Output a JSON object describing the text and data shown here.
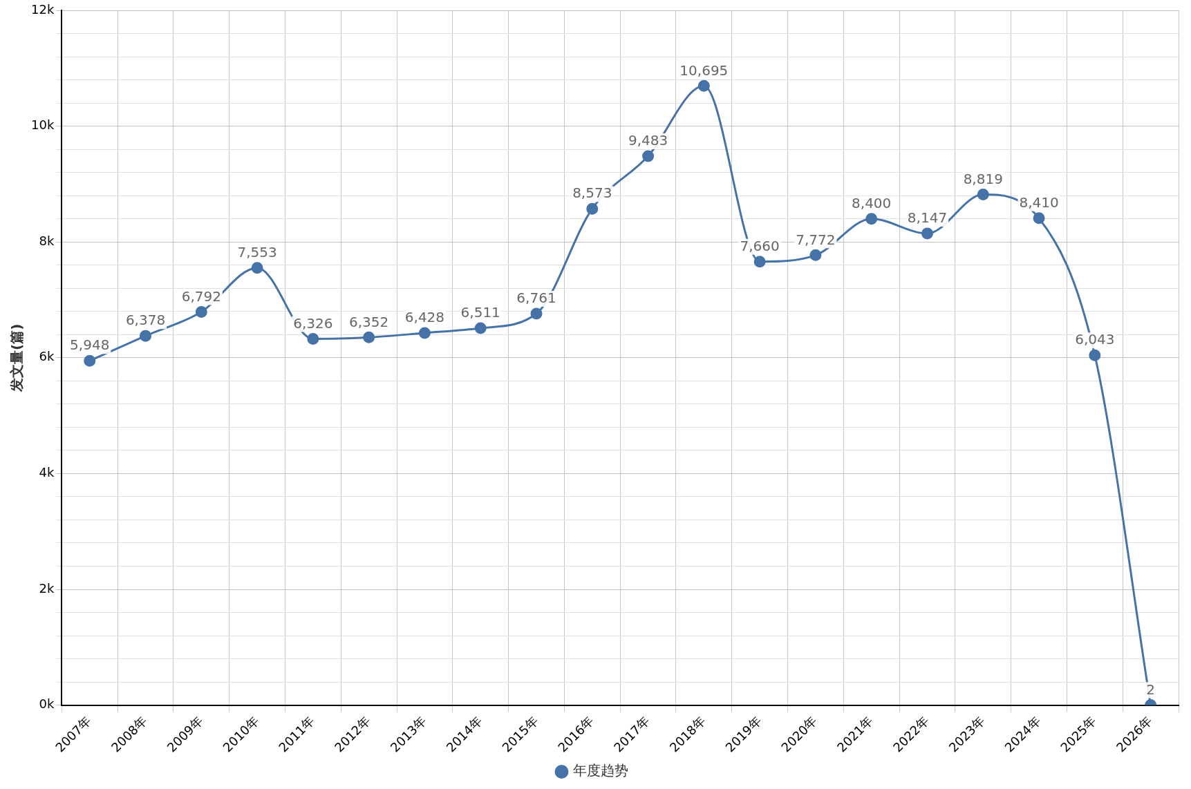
{
  "chart_data": {
    "type": "line",
    "ylabel": "发文量(篇)",
    "categories": [
      "2007年",
      "2008年",
      "2009年",
      "2010年",
      "2011年",
      "2012年",
      "2013年",
      "2014年",
      "2015年",
      "2016年",
      "2017年",
      "2018年",
      "2019年",
      "2020年",
      "2021年",
      "2022年",
      "2023年",
      "2024年",
      "2025年",
      "2026年"
    ],
    "series": [
      {
        "name": "年度趋势",
        "color": "#4572a7",
        "values": [
          5948,
          6378,
          6792,
          7553,
          6326,
          6352,
          6428,
          6511,
          6761,
          8573,
          9483,
          10695,
          7660,
          7772,
          8400,
          8147,
          8819,
          8410,
          6043,
          2
        ],
        "value_labels": [
          "5,948",
          "6,378",
          "6,792",
          "7,553",
          "6,326",
          "6,352",
          "6,428",
          "6,511",
          "6,761",
          "8,573",
          "9,483",
          "10,695",
          "7,660",
          "7,772",
          "8,400",
          "8,147",
          "8,819",
          "8,410",
          "6,043",
          "2"
        ]
      }
    ],
    "ylim": [
      0,
      12000
    ],
    "yticks": [
      {
        "value": 0,
        "label": "0k"
      },
      {
        "value": 400,
        "label": null
      },
      {
        "value": 800,
        "label": null
      },
      {
        "value": 1200,
        "label": null
      },
      {
        "value": 1600,
        "label": null
      },
      {
        "value": 2000,
        "label": "2k"
      },
      {
        "value": 2400,
        "label": null
      },
      {
        "value": 2800,
        "label": null
      },
      {
        "value": 3200,
        "label": null
      },
      {
        "value": 3600,
        "label": null
      },
      {
        "value": 4000,
        "label": "4k"
      },
      {
        "value": 4400,
        "label": null
      },
      {
        "value": 4800,
        "label": null
      },
      {
        "value": 5200,
        "label": null
      },
      {
        "value": 5600,
        "label": null
      },
      {
        "value": 6000,
        "label": "6k"
      },
      {
        "value": 6400,
        "label": null
      },
      {
        "value": 6800,
        "label": null
      },
      {
        "value": 7200,
        "label": null
      },
      {
        "value": 7600,
        "label": null
      },
      {
        "value": 8000,
        "label": "8k"
      },
      {
        "value": 8400,
        "label": null
      },
      {
        "value": 8800,
        "label": null
      },
      {
        "value": 9200,
        "label": null
      },
      {
        "value": 9600,
        "label": null
      },
      {
        "value": 10000,
        "label": "10k"
      },
      {
        "value": 10400,
        "label": null
      },
      {
        "value": 10800,
        "label": null
      },
      {
        "value": 11200,
        "label": null
      },
      {
        "value": 11600,
        "label": null
      },
      {
        "value": 12000,
        "label": "12k"
      }
    ],
    "grid": true,
    "legend": "bottom",
    "marker": "circle",
    "line_style": "solid"
  }
}
